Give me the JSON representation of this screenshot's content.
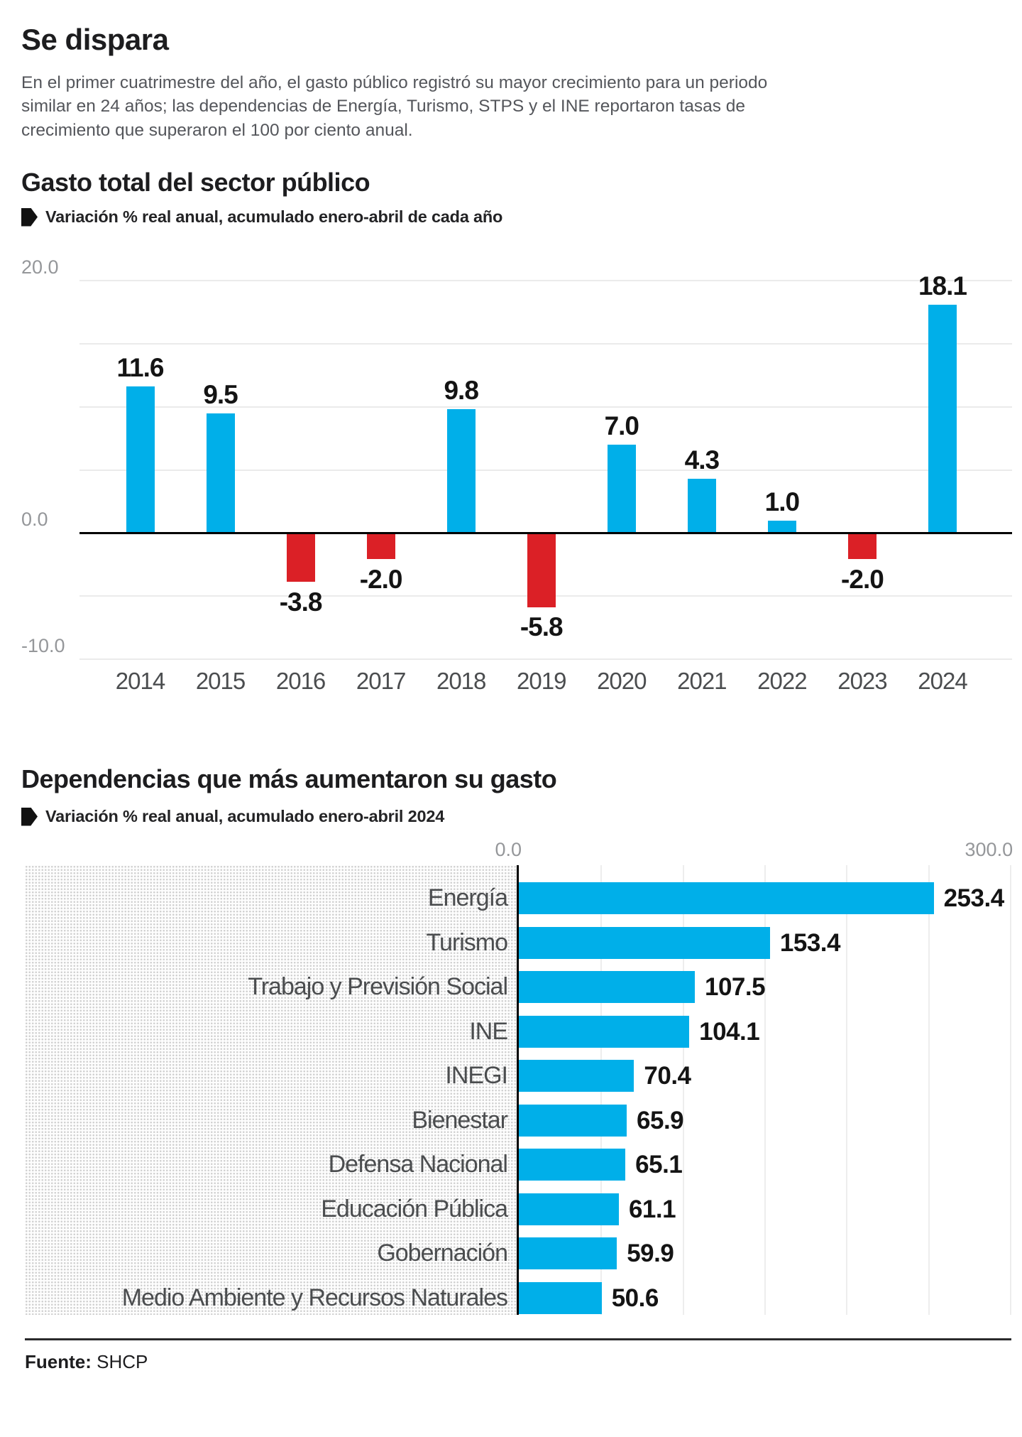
{
  "page": {
    "title": "Se dispara",
    "description": "En el primer cuatrimestre del año, el gasto público registró su mayor crecimiento para un periodo similar en 24 años; las dependencias de Energía, Turismo, STPS y el INE reportaron tasas de crecimiento que superaron el 100 por ciento anual.",
    "source_label": "Fuente:",
    "source_value": "SHCP"
  },
  "colors": {
    "positive": "#00AFE9",
    "negative": "#DB2026",
    "axis_text": "#95979A",
    "category_text": "#4B4D4F",
    "title_text": "#1D1D1F"
  },
  "chart_data": [
    {
      "type": "bar",
      "title": "Gasto total del sector público",
      "legend": "Variación % real anual, acumulado enero-abril de cada año",
      "categories": [
        "2014",
        "2015",
        "2016",
        "2017",
        "2018",
        "2019",
        "2020",
        "2021",
        "2022",
        "2023",
        "2024"
      ],
      "values": [
        11.6,
        9.5,
        -3.8,
        -2.0,
        9.8,
        -5.8,
        7.0,
        4.3,
        1.0,
        -2.0,
        18.1
      ],
      "ylim": [
        -10,
        20
      ],
      "yticks": [
        {
          "label": "20.0",
          "value": 20
        },
        {
          "label": "0.0",
          "value": 0
        },
        {
          "label": "-10.0",
          "value": -10
        }
      ],
      "grid_values": [
        20,
        15,
        10,
        5,
        -5,
        -10
      ],
      "grid": true,
      "legend_position": "top"
    },
    {
      "type": "bar-horizontal",
      "title": "Dependencias que más aumentaron su gasto",
      "legend": "Variación % real anual, acumulado enero-abril 2024",
      "categories": [
        "Energía",
        "Turismo",
        "Trabajo y Previsión Social",
        "INE",
        "INEGI",
        "Bienestar",
        "Defensa Nacional",
        "Educación Pública",
        "Gobernación",
        "Medio Ambiente y Recursos Naturales"
      ],
      "values": [
        253.4,
        153.4,
        107.5,
        104.1,
        70.4,
        65.9,
        65.1,
        61.1,
        59.9,
        50.6
      ],
      "xlim": [
        0,
        300
      ],
      "xticks": [
        {
          "label": "0.0",
          "value": 0
        },
        {
          "label": "300.0",
          "value": 300
        }
      ],
      "grid_step": 50,
      "grid": true
    }
  ]
}
